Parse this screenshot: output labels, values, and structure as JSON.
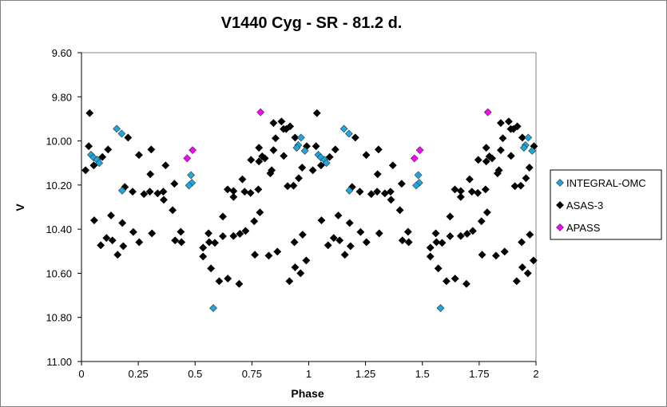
{
  "chart_data": {
    "type": "scatter",
    "title": "V1440 Cyg - SR - 81.2 d.",
    "xlabel": "Phase",
    "ylabel": "V",
    "xlim": [
      0,
      2
    ],
    "ylim": [
      11.0,
      9.6
    ],
    "y_inverted": true,
    "x_ticks": [
      "0",
      "0.25",
      "0.5",
      "0.75",
      "1",
      "1.25",
      "1.5",
      "1.75",
      "2"
    ],
    "x_tick_values": [
      0,
      0.25,
      0.5,
      0.75,
      1,
      1.25,
      1.5,
      1.75,
      2
    ],
    "y_ticks": [
      "9.60",
      "9.80",
      "10.00",
      "10.20",
      "10.40",
      "10.60",
      "10.80",
      "11.00"
    ],
    "y_tick_values": [
      9.6,
      9.8,
      10.0,
      10.2,
      10.4,
      10.6,
      10.8,
      11.0
    ],
    "grid": false,
    "legend_position": "right",
    "phase_cycles_shown": 2,
    "note_points": "points listed for phase 0-1; repeated at phase+1",
    "series": [
      {
        "name": "INTEGRAL-OMC",
        "color": "#1EA6DF",
        "points": [
          [
            0.155,
            9.945
          ],
          [
            0.177,
            9.967
          ],
          [
            0.042,
            10.063
          ],
          [
            0.053,
            10.075
          ],
          [
            0.069,
            10.085
          ],
          [
            0.078,
            10.1
          ],
          [
            0.179,
            10.225
          ],
          [
            0.482,
            10.155
          ],
          [
            0.486,
            10.19
          ],
          [
            0.473,
            10.202
          ],
          [
            0.58,
            10.758
          ],
          [
            0.966,
            9.985
          ],
          [
            0.954,
            10.019
          ],
          [
            0.947,
            10.031
          ],
          [
            0.983,
            10.045
          ]
        ]
      },
      {
        "name": "ASAS-3",
        "color": "#000000",
        "points": [
          [
            0.036,
            9.874
          ],
          [
            0.032,
            10.024
          ],
          [
            0.018,
            10.133
          ],
          [
            0.054,
            10.111
          ],
          [
            0.092,
            10.073
          ],
          [
            0.117,
            10.039
          ],
          [
            0.205,
            9.985
          ],
          [
            0.253,
            10.064
          ],
          [
            0.307,
            10.039
          ],
          [
            0.303,
            10.151
          ],
          [
            0.37,
            10.111
          ],
          [
            0.191,
            10.209
          ],
          [
            0.225,
            10.23
          ],
          [
            0.275,
            10.241
          ],
          [
            0.301,
            10.23
          ],
          [
            0.335,
            10.238
          ],
          [
            0.36,
            10.23
          ],
          [
            0.362,
            10.267
          ],
          [
            0.409,
            10.194
          ],
          [
            0.401,
            10.314
          ],
          [
            0.056,
            10.36
          ],
          [
            0.13,
            10.338
          ],
          [
            0.18,
            10.372
          ],
          [
            0.228,
            10.413
          ],
          [
            0.11,
            10.44
          ],
          [
            0.136,
            10.451
          ],
          [
            0.085,
            10.473
          ],
          [
            0.184,
            10.477
          ],
          [
            0.159,
            10.516
          ],
          [
            0.254,
            10.459
          ],
          [
            0.31,
            10.419
          ],
          [
            0.437,
            10.412
          ],
          [
            0.412,
            10.451
          ],
          [
            0.44,
            10.459
          ],
          [
            0.643,
            10.22
          ],
          [
            0.669,
            10.227
          ],
          [
            0.669,
            10.254
          ],
          [
            0.622,
            10.343
          ],
          [
            0.559,
            10.419
          ],
          [
            0.622,
            10.432
          ],
          [
            0.669,
            10.431
          ],
          [
            0.562,
            10.459
          ],
          [
            0.587,
            10.462
          ],
          [
            0.535,
            10.484
          ],
          [
            0.535,
            10.524
          ],
          [
            0.57,
            10.578
          ],
          [
            0.606,
            10.636
          ],
          [
            0.644,
            10.624
          ],
          [
            0.845,
            9.919
          ],
          [
            0.88,
            9.912
          ],
          [
            0.889,
            9.946
          ],
          [
            0.901,
            9.946
          ],
          [
            0.918,
            9.934
          ],
          [
            0.854,
            9.988
          ],
          [
            0.94,
            9.985
          ],
          [
            0.781,
            10.031
          ],
          [
            0.845,
            10.042
          ],
          [
            0.89,
            10.068
          ],
          [
            0.746,
            10.086
          ],
          [
            0.781,
            10.093
          ],
          [
            0.795,
            10.07
          ],
          [
            0.807,
            10.079
          ],
          [
            0.991,
            10.024
          ],
          [
            0.837,
            10.133
          ],
          [
            0.831,
            10.147
          ],
          [
            0.971,
            10.121
          ],
          [
            0.708,
            10.174
          ],
          [
            0.956,
            10.169
          ],
          [
            0.907,
            10.205
          ],
          [
            0.933,
            10.203
          ],
          [
            0.718,
            10.23
          ],
          [
            0.744,
            10.236
          ],
          [
            0.778,
            10.22
          ],
          [
            0.785,
            10.324
          ],
          [
            0.76,
            10.364
          ],
          [
            0.722,
            10.408
          ],
          [
            0.697,
            10.421
          ],
          [
            0.973,
            10.425
          ],
          [
            0.937,
            10.459
          ],
          [
            0.763,
            10.516
          ],
          [
            0.824,
            10.52
          ],
          [
            0.862,
            10.502
          ],
          [
            0.989,
            10.542
          ],
          [
            0.94,
            10.573
          ],
          [
            0.964,
            10.6
          ],
          [
            0.915,
            10.636
          ],
          [
            0.694,
            10.648
          ]
        ]
      },
      {
        "name": "APASS",
        "color": "#FF00FF",
        "points": [
          [
            0.465,
            10.079
          ],
          [
            0.489,
            10.042
          ],
          [
            0.788,
            9.87
          ]
        ]
      }
    ]
  }
}
